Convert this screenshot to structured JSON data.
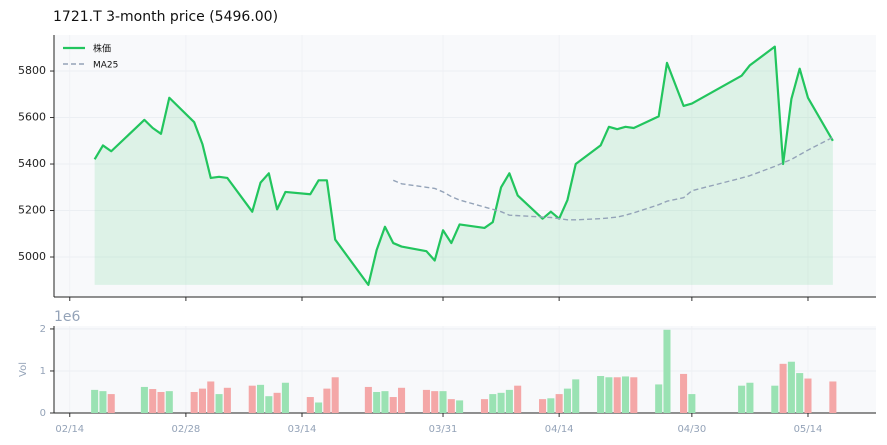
{
  "chart_data": [
    {
      "type": "line",
      "title": "1721.T  3-month price (5496.00)",
      "x": [
        3,
        4,
        5,
        9,
        10,
        11,
        12,
        15,
        16,
        17,
        18,
        19,
        22,
        23,
        24,
        25,
        26,
        29,
        30,
        31,
        32,
        36,
        37,
        38,
        39,
        40,
        43,
        44,
        45,
        46,
        47,
        50,
        51,
        52,
        53,
        54,
        57,
        58,
        59,
        60,
        61,
        64,
        65,
        66,
        67,
        68,
        71,
        72,
        74,
        75,
        81,
        82,
        85,
        86,
        87,
        88,
        89,
        92
      ],
      "series": [
        {
          "name": "株価",
          "color": "#22c55e",
          "fill": true,
          "values": [
            5420,
            5480,
            5455,
            5590,
            5555,
            5530,
            5685,
            5580,
            5485,
            5340,
            5345,
            5340,
            5195,
            5320,
            5360,
            5205,
            5280,
            5270,
            5330,
            5330,
            5075,
            4880,
            5030,
            5130,
            5060,
            5045,
            5025,
            4985,
            5115,
            5060,
            5140,
            5125,
            5150,
            5300,
            5360,
            5265,
            5165,
            5195,
            5165,
            5245,
            5400,
            5480,
            5560,
            5550,
            5560,
            5555,
            5605,
            5835,
            5650,
            5660,
            5780,
            5825,
            5905,
            5400,
            5680,
            5810,
            5685,
            5500
          ]
        },
        {
          "name": "MA25",
          "color": "#94a3b8",
          "dashed": true,
          "values": [
            null,
            null,
            null,
            null,
            null,
            null,
            null,
            null,
            null,
            null,
            null,
            null,
            null,
            null,
            null,
            null,
            null,
            null,
            null,
            null,
            null,
            null,
            null,
            null,
            5330,
            5315,
            5300,
            5295,
            5280,
            5260,
            5245,
            5215,
            5205,
            5195,
            5180,
            5178,
            5172,
            5170,
            5165,
            5160,
            5160,
            5165,
            5168,
            5172,
            5180,
            5190,
            5225,
            5240,
            5255,
            5285,
            5340,
            5350,
            5390,
            5405,
            5420,
            5440,
            5460,
            5515
          ]
        }
      ],
      "xlim": [
        -1.9,
        97.2
      ],
      "ylim": [
        4828,
        5955
      ],
      "yticks": [
        5000,
        5200,
        5400,
        5600,
        5800
      ],
      "grid": true,
      "legend": "upper left"
    },
    {
      "type": "bar",
      "ylabel": "Vol",
      "offset_label": "1e6",
      "x": [
        3,
        4,
        5,
        9,
        10,
        11,
        12,
        15,
        16,
        17,
        18,
        19,
        22,
        23,
        24,
        25,
        26,
        29,
        30,
        31,
        32,
        36,
        37,
        38,
        39,
        40,
        43,
        44,
        45,
        46,
        47,
        50,
        51,
        52,
        53,
        54,
        57,
        58,
        59,
        60,
        61,
        64,
        65,
        66,
        67,
        68,
        71,
        72,
        74,
        75,
        81,
        82,
        85,
        86,
        87,
        88,
        89,
        92
      ],
      "values": [
        0.55,
        0.52,
        0.45,
        0.62,
        0.57,
        0.5,
        0.52,
        0.5,
        0.58,
        0.75,
        0.45,
        0.6,
        0.65,
        0.67,
        0.4,
        0.48,
        0.72,
        0.38,
        0.25,
        0.58,
        0.85,
        0.62,
        0.5,
        0.52,
        0.38,
        0.6,
        0.55,
        0.52,
        0.52,
        0.33,
        0.3,
        0.33,
        0.45,
        0.48,
        0.55,
        0.65,
        0.33,
        0.35,
        0.45,
        0.58,
        0.8,
        0.88,
        0.85,
        0.85,
        0.87,
        0.85,
        0.68,
        1.98,
        0.93,
        0.45,
        0.65,
        0.72,
        0.65,
        1.17,
        1.22,
        0.95,
        0.82,
        0.75
      ],
      "up_color": "#9ae2b3",
      "down_color": "#f4a7a7",
      "xlim": [
        -1.9,
        97.2
      ],
      "ylim": [
        0,
        2.07
      ],
      "yticks": [
        0,
        1,
        2
      ],
      "xticks": [
        {
          "value": 0,
          "label": "02/14"
        },
        {
          "value": 14,
          "label": "02/28"
        },
        {
          "value": 28,
          "label": "03/14"
        },
        {
          "value": 45,
          "label": "03/31"
        },
        {
          "value": 59,
          "label": "04/14"
        },
        {
          "value": 75,
          "label": "04/30"
        },
        {
          "value": 89,
          "label": "05/14"
        }
      ],
      "grid": true
    }
  ]
}
